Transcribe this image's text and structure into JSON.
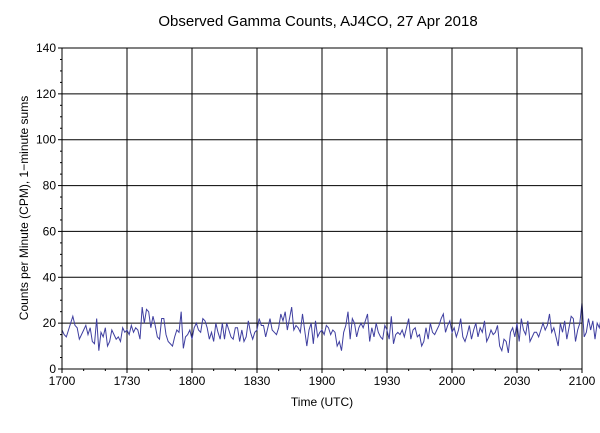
{
  "chart_data": {
    "type": "line",
    "title": "Observed Gamma Counts, AJ4CO, 27 Apr 2018",
    "xlabel": "Time (UTC)",
    "ylabel": "Counts per Minute (CPM), 1−minute sums",
    "x_ticks": [
      "1700",
      "1730",
      "1800",
      "1830",
      "1900",
      "1930",
      "2000",
      "2030",
      "2100"
    ],
    "y_ticks": [
      "0",
      "20",
      "40",
      "60",
      "80",
      "100",
      "120",
      "140"
    ],
    "xlim_minutes": [
      0,
      240
    ],
    "ylim": [
      0,
      140
    ],
    "grid": true,
    "legend": "none",
    "line_color": "#3f3fa0",
    "series": [
      {
        "x_start": "1700",
        "x_step_minutes": 1,
        "values": [
          17,
          15,
          14,
          17,
          20,
          23,
          19,
          18,
          13,
          15,
          17,
          19,
          15,
          18,
          12,
          11,
          22,
          8,
          16,
          14,
          18,
          10,
          12,
          17,
          15,
          13,
          14,
          12,
          18,
          16,
          17,
          15,
          19,
          16,
          18,
          17,
          13,
          27,
          20,
          26,
          25,
          18,
          23,
          19,
          14,
          13,
          22,
          22,
          15,
          12,
          11,
          10,
          14,
          17,
          16,
          25,
          9,
          14,
          15,
          17,
          13,
          18,
          20,
          17,
          16,
          22,
          21,
          18,
          13,
          16,
          12,
          20,
          16,
          13,
          20,
          13,
          20,
          17,
          14,
          13,
          18,
          18,
          12,
          17,
          12,
          14,
          21,
          16,
          13,
          16,
          17,
          22,
          19,
          19,
          14,
          18,
          22,
          17,
          16,
          15,
          18,
          24,
          21,
          25,
          17,
          22,
          27,
          17,
          19,
          18,
          16,
          24,
          17,
          10,
          17,
          20,
          11,
          21,
          14,
          16,
          17,
          15,
          19,
          18,
          15,
          17,
          16,
          10,
          12,
          8,
          16,
          19,
          25,
          13,
          22,
          20,
          14,
          18,
          20,
          18,
          21,
          24,
          12,
          18,
          14,
          20,
          16,
          14,
          13,
          19,
          17,
          13,
          23,
          11,
          15,
          16,
          15,
          17,
          14,
          18,
          22,
          13,
          17,
          18,
          14,
          15,
          10,
          12,
          18,
          13,
          20,
          16,
          15,
          17,
          19,
          22,
          24,
          16,
          19,
          21,
          16,
          18,
          14,
          17,
          22,
          14,
          12,
          15,
          19,
          13,
          17,
          20,
          14,
          18,
          16,
          21,
          12,
          14,
          17,
          15,
          16,
          19,
          10,
          8,
          13,
          12,
          7,
          16,
          18,
          14,
          20,
          12,
          22,
          17,
          15,
          21,
          12,
          14,
          16,
          16,
          14,
          17,
          20,
          17,
          19,
          24,
          16,
          18,
          14,
          10,
          20,
          16,
          21,
          13,
          18,
          23,
          22,
          12,
          17,
          20,
          29,
          14,
          16,
          22,
          17,
          21,
          13,
          20,
          18,
          23,
          22,
          15
        ]
      }
    ]
  }
}
